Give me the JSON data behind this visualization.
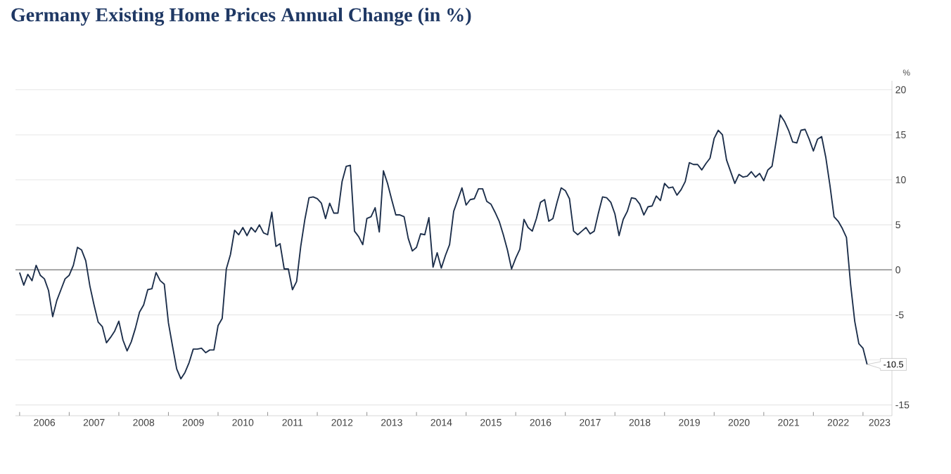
{
  "chart_data": {
    "type": "line",
    "title": "Germany Existing Home Prices Annual Change (in %)",
    "ylabel": "%",
    "x": [
      "2006-01",
      "2006-02",
      "2006-03",
      "2006-04",
      "2006-05",
      "2006-06",
      "2006-07",
      "2006-08",
      "2006-09",
      "2006-10",
      "2006-11",
      "2006-12",
      "2007-01",
      "2007-02",
      "2007-03",
      "2007-04",
      "2007-05",
      "2007-06",
      "2007-07",
      "2007-08",
      "2007-09",
      "2007-10",
      "2007-11",
      "2007-12",
      "2008-01",
      "2008-02",
      "2008-03",
      "2008-04",
      "2008-05",
      "2008-06",
      "2008-07",
      "2008-08",
      "2008-09",
      "2008-10",
      "2008-11",
      "2008-12",
      "2009-01",
      "2009-02",
      "2009-03",
      "2009-04",
      "2009-05",
      "2009-06",
      "2009-07",
      "2009-08",
      "2009-09",
      "2009-10",
      "2009-11",
      "2009-12",
      "2010-01",
      "2010-02",
      "2010-03",
      "2010-04",
      "2010-05",
      "2010-06",
      "2010-07",
      "2010-08",
      "2010-09",
      "2010-10",
      "2010-11",
      "2010-12",
      "2011-01",
      "2011-02",
      "2011-03",
      "2011-04",
      "2011-05",
      "2011-06",
      "2011-07",
      "2011-08",
      "2011-09",
      "2011-10",
      "2011-11",
      "2011-12",
      "2012-01",
      "2012-02",
      "2012-03",
      "2012-04",
      "2012-05",
      "2012-06",
      "2012-07",
      "2012-08",
      "2012-09",
      "2012-10",
      "2012-11",
      "2012-12",
      "2013-01",
      "2013-02",
      "2013-03",
      "2013-04",
      "2013-05",
      "2013-06",
      "2013-07",
      "2013-08",
      "2013-09",
      "2013-10",
      "2013-11",
      "2013-12",
      "2014-01",
      "2014-02",
      "2014-03",
      "2014-04",
      "2014-05",
      "2014-06",
      "2014-07",
      "2014-08",
      "2014-09",
      "2014-10",
      "2014-11",
      "2014-12",
      "2015-01",
      "2015-02",
      "2015-03",
      "2015-04",
      "2015-05",
      "2015-06",
      "2015-07",
      "2015-08",
      "2015-09",
      "2015-10",
      "2015-11",
      "2015-12",
      "2016-01",
      "2016-02",
      "2016-03",
      "2016-04",
      "2016-05",
      "2016-06",
      "2016-07",
      "2016-08",
      "2016-09",
      "2016-10",
      "2016-11",
      "2016-12",
      "2017-01",
      "2017-02",
      "2017-03",
      "2017-04",
      "2017-05",
      "2017-06",
      "2017-07",
      "2017-08",
      "2017-09",
      "2017-10",
      "2017-11",
      "2017-12",
      "2018-01",
      "2018-02",
      "2018-03",
      "2018-04",
      "2018-05",
      "2018-06",
      "2018-07",
      "2018-08",
      "2018-09",
      "2018-10",
      "2018-11",
      "2018-12",
      "2019-01",
      "2019-02",
      "2019-03",
      "2019-04",
      "2019-05",
      "2019-06",
      "2019-07",
      "2019-08",
      "2019-09",
      "2019-10",
      "2019-11",
      "2019-12",
      "2020-01",
      "2020-02",
      "2020-03",
      "2020-04",
      "2020-05",
      "2020-06",
      "2020-07",
      "2020-08",
      "2020-09",
      "2020-10",
      "2020-11",
      "2020-12",
      "2021-01",
      "2021-02",
      "2021-03",
      "2021-04",
      "2021-05",
      "2021-06",
      "2021-07",
      "2021-08",
      "2021-09",
      "2021-10",
      "2021-11",
      "2021-12",
      "2022-01",
      "2022-02",
      "2022-03",
      "2022-04",
      "2022-05",
      "2022-06",
      "2022-07",
      "2022-08",
      "2022-09",
      "2022-10",
      "2022-11",
      "2022-12",
      "2023-01",
      "2023-02"
    ],
    "values": [
      -0.3,
      -1.7,
      -0.5,
      -1.2,
      0.5,
      -0.6,
      -1.0,
      -2.3,
      -5.2,
      -3.4,
      -2.2,
      -1.0,
      -0.6,
      0.5,
      2.5,
      2.2,
      1.0,
      -1.8,
      -3.9,
      -5.8,
      -6.3,
      -8.1,
      -7.5,
      -6.8,
      -5.7,
      -7.8,
      -9.0,
      -8.0,
      -6.5,
      -4.7,
      -3.9,
      -2.2,
      -2.1,
      -0.3,
      -1.2,
      -1.6,
      -5.9,
      -8.5,
      -11.0,
      -12.1,
      -11.4,
      -10.3,
      -8.8,
      -8.8,
      -8.7,
      -9.2,
      -8.9,
      -8.9,
      -6.2,
      -5.4,
      0.1,
      1.7,
      4.4,
      3.9,
      4.7,
      3.8,
      4.7,
      4.2,
      5.0,
      4.1,
      3.9,
      6.4,
      2.6,
      2.9,
      0.1,
      0.1,
      -2.2,
      -1.3,
      2.6,
      5.6,
      8.0,
      8.1,
      7.9,
      7.4,
      5.7,
      7.4,
      6.3,
      6.3,
      9.8,
      11.5,
      11.6,
      4.3,
      3.7,
      2.8,
      5.7,
      5.9,
      6.9,
      4.2,
      11.0,
      9.6,
      7.8,
      6.1,
      6.1,
      5.9,
      3.5,
      2.1,
      2.5,
      4.0,
      3.9,
      5.8,
      0.3,
      1.9,
      0.2,
      1.6,
      2.8,
      6.5,
      7.8,
      9.1,
      7.2,
      7.8,
      7.9,
      9.0,
      9.0,
      7.6,
      7.3,
      6.4,
      5.4,
      3.9,
      2.2,
      0.1,
      1.3,
      2.3,
      5.6,
      4.7,
      4.3,
      5.7,
      7.5,
      7.8,
      5.4,
      5.7,
      7.5,
      9.1,
      8.8,
      7.9,
      4.3,
      3.9,
      4.3,
      4.7,
      4.0,
      4.3,
      6.3,
      8.1,
      8.0,
      7.5,
      6.2,
      3.8,
      5.6,
      6.5,
      8.0,
      7.9,
      7.3,
      6.1,
      7.0,
      7.1,
      8.2,
      7.7,
      9.6,
      9.1,
      9.2,
      8.3,
      8.9,
      9.8,
      11.9,
      11.7,
      11.7,
      11.1,
      11.8,
      12.4,
      14.6,
      15.5,
      15.0,
      12.2,
      10.9,
      9.6,
      10.6,
      10.3,
      10.4,
      10.9,
      10.3,
      10.7,
      9.9,
      11.1,
      11.5,
      14.3,
      17.2,
      16.5,
      15.5,
      14.2,
      14.1,
      15.5,
      15.6,
      14.5,
      13.2,
      14.5,
      14.8,
      12.5,
      9.4,
      5.9,
      5.4,
      4.6,
      3.6,
      -1.6,
      -5.7,
      -8.2,
      -8.7,
      -10.5
    ],
    "color": "#1c2e4a",
    "xlim": [
      "2005-12",
      "2023-08"
    ],
    "ylim": [
      -16.2,
      21
    ],
    "yticks": [
      -15,
      {
        "value": -10,
        "label": null
      },
      -5,
      0,
      5,
      10,
      15,
      20
    ],
    "xticks": [
      {
        "value": "2006-01",
        "label": null
      },
      {
        "value": "2006-07",
        "label": "2006"
      },
      {
        "value": "2007-01",
        "label": null
      },
      {
        "value": "2007-07",
        "label": "2007"
      },
      {
        "value": "2008-01",
        "label": null
      },
      {
        "value": "2008-07",
        "label": "2008"
      },
      {
        "value": "2009-01",
        "label": null
      },
      {
        "value": "2009-07",
        "label": "2009"
      },
      {
        "value": "2010-01",
        "label": null
      },
      {
        "value": "2010-07",
        "label": "2010"
      },
      {
        "value": "2011-01",
        "label": null
      },
      {
        "value": "2011-07",
        "label": "2011"
      },
      {
        "value": "2012-01",
        "label": null
      },
      {
        "value": "2012-07",
        "label": "2012"
      },
      {
        "value": "2013-01",
        "label": null
      },
      {
        "value": "2013-07",
        "label": "2013"
      },
      {
        "value": "2014-01",
        "label": null
      },
      {
        "value": "2014-07",
        "label": "2014"
      },
      {
        "value": "2015-01",
        "label": null
      },
      {
        "value": "2015-07",
        "label": "2015"
      },
      {
        "value": "2016-01",
        "label": null
      },
      {
        "value": "2016-07",
        "label": "2016"
      },
      {
        "value": "2017-01",
        "label": null
      },
      {
        "value": "2017-07",
        "label": "2017"
      },
      {
        "value": "2018-01",
        "label": null
      },
      {
        "value": "2018-07",
        "label": "2018"
      },
      {
        "value": "2019-01",
        "label": null
      },
      {
        "value": "2019-07",
        "label": "2019"
      },
      {
        "value": "2020-01",
        "label": null
      },
      {
        "value": "2020-07",
        "label": "2020"
      },
      {
        "value": "2021-01",
        "label": null
      },
      {
        "value": "2021-07",
        "label": "2021"
      },
      {
        "value": "2022-01",
        "label": null
      },
      {
        "value": "2022-07",
        "label": "2022"
      },
      {
        "value": "2023-01",
        "label": null
      },
      {
        "value": "2023-05",
        "label": "2023"
      }
    ],
    "grid": "y",
    "ref_lines": [
      {
        "axis": "y",
        "value": 0,
        "color": "#8c8c8c"
      }
    ],
    "annotations": [
      {
        "text": "-10.5",
        "x": "2023-02",
        "y": -10.5
      }
    ]
  }
}
